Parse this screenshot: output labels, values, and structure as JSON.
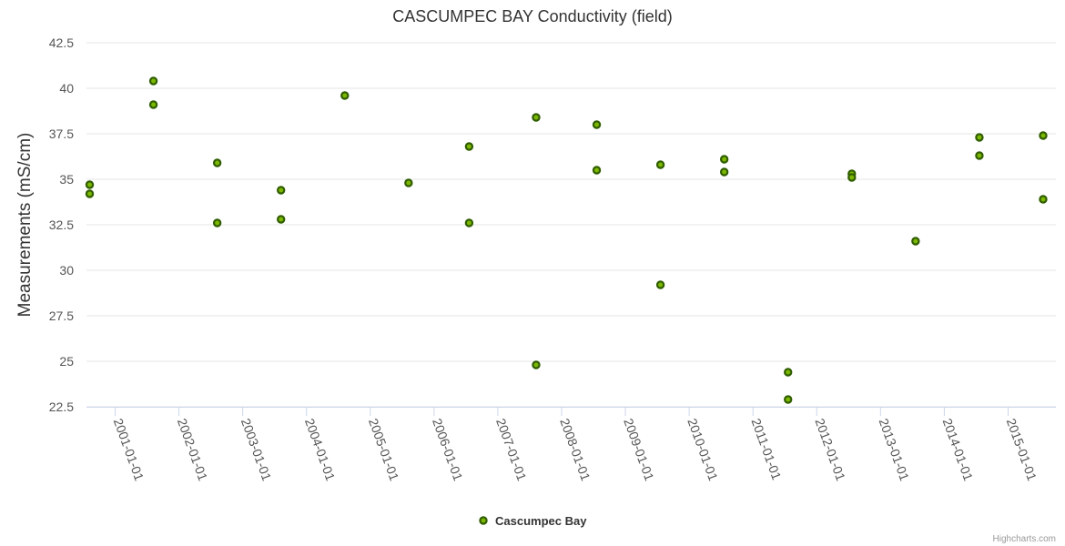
{
  "chart_data": {
    "type": "scatter",
    "title": "CASCUMPEC BAY Conductivity (field)",
    "ylabel": "Measurements (mS/cm)",
    "xlabel": "",
    "ylim": [
      22.5,
      42.5
    ],
    "xlim": [
      2000.55,
      2015.75
    ],
    "y_ticks": [
      22.5,
      25,
      27.5,
      30,
      32.5,
      35,
      37.5,
      40,
      42.5
    ],
    "y_tick_labels": [
      "22.5",
      "25",
      "27.5",
      "30",
      "32.5",
      "35",
      "37.5",
      "40",
      "42.5"
    ],
    "x_ticks": [
      2001,
      2002,
      2003,
      2004,
      2005,
      2006,
      2007,
      2008,
      2009,
      2010,
      2011,
      2012,
      2013,
      2014,
      2015
    ],
    "x_tick_labels": [
      "2001-01-01",
      "2002-01-01",
      "2003-01-01",
      "2004-01-01",
      "2005-01-01",
      "2006-01-01",
      "2007-01-01",
      "2008-01-01",
      "2009-01-01",
      "2010-01-01",
      "2011-01-01",
      "2012-01-01",
      "2013-01-01",
      "2014-01-01",
      "2015-01-01"
    ],
    "grid": true,
    "legend_position": "bottom-center",
    "series": [
      {
        "name": "Cascumpec Bay",
        "color": "#7cb800",
        "points": [
          {
            "x": 2000.6,
            "y": 34.7
          },
          {
            "x": 2000.6,
            "y": 34.2
          },
          {
            "x": 2001.6,
            "y": 40.4
          },
          {
            "x": 2001.6,
            "y": 39.1
          },
          {
            "x": 2002.6,
            "y": 35.9
          },
          {
            "x": 2002.6,
            "y": 32.6
          },
          {
            "x": 2003.6,
            "y": 34.4
          },
          {
            "x": 2003.6,
            "y": 32.8
          },
          {
            "x": 2004.6,
            "y": 39.6
          },
          {
            "x": 2005.6,
            "y": 34.8
          },
          {
            "x": 2006.55,
            "y": 36.8
          },
          {
            "x": 2006.55,
            "y": 32.6
          },
          {
            "x": 2007.6,
            "y": 38.4
          },
          {
            "x": 2007.6,
            "y": 24.8
          },
          {
            "x": 2008.55,
            "y": 38.0
          },
          {
            "x": 2008.55,
            "y": 35.5
          },
          {
            "x": 2009.55,
            "y": 35.8
          },
          {
            "x": 2009.55,
            "y": 29.2
          },
          {
            "x": 2010.55,
            "y": 36.1
          },
          {
            "x": 2010.55,
            "y": 35.4
          },
          {
            "x": 2011.55,
            "y": 24.4
          },
          {
            "x": 2011.55,
            "y": 22.9
          },
          {
            "x": 2012.55,
            "y": 35.3
          },
          {
            "x": 2012.55,
            "y": 35.1
          },
          {
            "x": 2013.55,
            "y": 31.6
          },
          {
            "x": 2014.55,
            "y": 37.3
          },
          {
            "x": 2014.55,
            "y": 36.3
          },
          {
            "x": 2015.55,
            "y": 37.4
          },
          {
            "x": 2015.55,
            "y": 33.9
          }
        ]
      }
    ]
  },
  "credits": "Highcharts.com"
}
